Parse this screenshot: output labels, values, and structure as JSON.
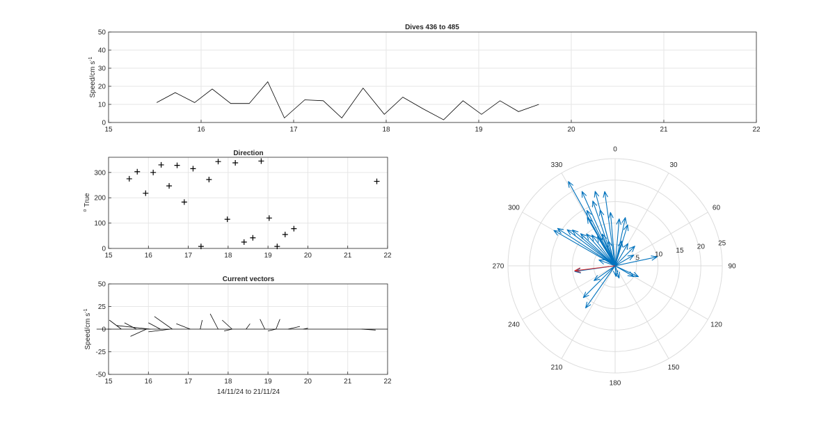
{
  "figure": {
    "background": "#ffffff",
    "grid_color": "#e6e6e6",
    "axis_color": "#262626",
    "line_color": "#000000",
    "polar_grid_color": "#dcdcdc",
    "arrow_color": "#0072bd",
    "mean_arrow_color": "#d62728"
  },
  "chart_data": [
    {
      "id": "speed",
      "type": "line",
      "title": "Dives 436 to 485",
      "ylabel": "Speed/cm s",
      "ylabel_exp": "-1",
      "xlim": [
        15,
        22
      ],
      "ylim": [
        0,
        50
      ],
      "xticks": [
        15,
        16,
        17,
        18,
        19,
        20,
        21,
        22
      ],
      "yticks": [
        0,
        10,
        20,
        30,
        40,
        50
      ],
      "grid": true,
      "x": [
        15.52,
        15.72,
        15.93,
        16.12,
        16.32,
        16.52,
        16.72,
        16.9,
        17.12,
        17.32,
        17.52,
        17.75,
        17.98,
        18.18,
        18.4,
        18.62,
        18.83,
        19.03,
        19.23,
        19.43,
        19.65
      ],
      "y": [
        11,
        16.5,
        11,
        18.5,
        10.5,
        10.5,
        22.5,
        2.5,
        12.5,
        12,
        2.5,
        19,
        4.5,
        14,
        7.5,
        1.5,
        12,
        4.5,
        12,
        6,
        10
      ]
    },
    {
      "id": "direction",
      "type": "scatter",
      "title": "Direction",
      "ylabel": "True",
      "ylabel_prefix": "o",
      "xlim": [
        15,
        22
      ],
      "ylim": [
        0,
        360
      ],
      "xticks": [
        15,
        16,
        17,
        18,
        19,
        20,
        21,
        22
      ],
      "yticks": [
        0,
        100,
        200,
        300
      ],
      "grid": true,
      "marker": "+",
      "x": [
        15.52,
        15.72,
        15.93,
        16.12,
        16.32,
        16.52,
        16.72,
        16.9,
        17.12,
        17.32,
        17.52,
        17.75,
        17.98,
        18.18,
        18.4,
        18.62,
        18.83,
        19.03,
        19.23,
        19.43,
        19.65,
        21.73
      ],
      "y": [
        275,
        303,
        218,
        300,
        330,
        247,
        328,
        183,
        315,
        8,
        272,
        343,
        115,
        338,
        25,
        42,
        345,
        120,
        8,
        55,
        78,
        265
      ]
    },
    {
      "id": "vectors",
      "type": "line",
      "title": "Current vectors",
      "ylabel": "Speed/cm s",
      "ylabel_exp": "-1",
      "xlabel": "14/11/24 to 21/11/24",
      "xlim": [
        15,
        22
      ],
      "ylim": [
        -50,
        50
      ],
      "xticks": [
        15,
        16,
        17,
        18,
        19,
        20,
        21,
        22
      ],
      "yticks": [
        -50,
        -25,
        0,
        25,
        50
      ],
      "grid": true,
      "sticks": [
        {
          "t": 15.0,
          "dx": -0.3,
          "dy": 0
        },
        {
          "t": 15.32,
          "dx": -0.3,
          "dy": 10
        },
        {
          "t": 15.7,
          "dx": -0.3,
          "dy": 7
        },
        {
          "t": 16.05,
          "dx": -0.85,
          "dy": 4
        },
        {
          "t": 15.95,
          "dx": -0.4,
          "dy": -8
        },
        {
          "t": 16.3,
          "dx": -0.3,
          "dy": 7
        },
        {
          "t": 16.6,
          "dx": -0.45,
          "dy": 14
        },
        {
          "t": 16.55,
          "dx": -0.55,
          "dy": -3
        },
        {
          "t": 17.05,
          "dx": -0.35,
          "dy": 6
        },
        {
          "t": 17.3,
          "dx": 0.05,
          "dy": 10
        },
        {
          "t": 17.75,
          "dx": -0.2,
          "dy": 17
        },
        {
          "t": 18.1,
          "dx": -0.25,
          "dy": 10
        },
        {
          "t": 18.1,
          "dx": -0.2,
          "dy": -2
        },
        {
          "t": 18.45,
          "dx": 0.1,
          "dy": 6
        },
        {
          "t": 18.92,
          "dx": -0.12,
          "dy": 11
        },
        {
          "t": 19.2,
          "dx": -0.2,
          "dy": -2
        },
        {
          "t": 19.2,
          "dx": 0.1,
          "dy": 11
        },
        {
          "t": 19.5,
          "dx": 0.3,
          "dy": 3
        },
        {
          "t": 19.88,
          "dx": 0.12,
          "dy": 1
        },
        {
          "t": 21.35,
          "dx": 0.35,
          "dy": -1
        }
      ]
    },
    {
      "id": "polar",
      "type": "polar",
      "angle_labels": [
        "0",
        "30",
        "60",
        "90",
        "120",
        "150",
        "180",
        "210",
        "240",
        "270",
        "300",
        "330"
      ],
      "rmax": 25,
      "radial_ticks": [
        5,
        10,
        15,
        20,
        25
      ],
      "radial_label_angle_deg": 80,
      "vectors_deg_speed": [
        [
          331,
          22.5
        ],
        [
          336,
          19
        ],
        [
          345,
          18
        ],
        [
          352,
          17.5
        ],
        [
          341,
          16
        ],
        [
          333,
          14.5
        ],
        [
          330,
          13
        ],
        [
          345,
          13.5
        ],
        [
          355,
          12.5
        ],
        [
          5,
          11
        ],
        [
          12,
          11.5
        ],
        [
          17,
          10
        ],
        [
          300,
          16.5
        ],
        [
          303,
          16
        ],
        [
          307,
          14
        ],
        [
          310,
          13
        ],
        [
          313,
          11
        ],
        [
          318,
          10
        ],
        [
          323,
          9
        ],
        [
          329,
          8
        ],
        [
          338,
          8
        ],
        [
          345,
          6
        ],
        [
          15,
          6
        ],
        [
          30,
          6
        ],
        [
          45,
          6.5
        ],
        [
          60,
          5
        ],
        [
          78,
          10
        ],
        [
          115,
          6
        ],
        [
          120,
          5
        ],
        [
          215,
          12
        ],
        [
          225,
          10.5
        ],
        [
          235,
          6
        ],
        [
          162,
          3
        ],
        [
          175,
          2.5
        ],
        [
          262,
          9.5
        ],
        [
          290,
          4
        ]
      ],
      "mean_vector_deg_speed": [
        263,
        9.5
      ]
    }
  ]
}
